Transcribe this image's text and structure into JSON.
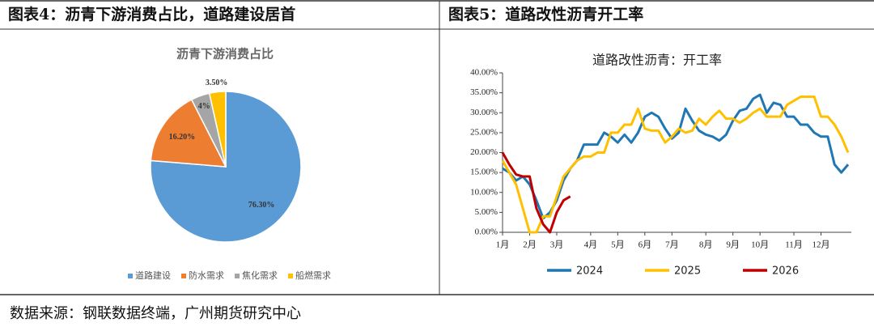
{
  "panels": [
    {
      "heading": "图表4：沥青下游消费占比，道路建设居首"
    },
    {
      "heading": "图表5：道路改性沥青开工率"
    }
  ],
  "source": "数据来源：钢联数据终端，广州期货研究中心",
  "chart_data": [
    {
      "type": "pie",
      "title": "沥青下游消费占比",
      "categories": [
        "道路建设",
        "防水需求",
        "焦化需求",
        "船燃需求"
      ],
      "values": [
        76.3,
        16.2,
        4,
        3.5
      ],
      "value_labels": [
        "76.30%",
        "16.20%",
        "4%",
        "3.50%"
      ],
      "colors": [
        "#5b9bd5",
        "#ed7d31",
        "#a5a5a5",
        "#ffc000"
      ],
      "legend": "bottom"
    },
    {
      "type": "line",
      "title": "道路改性沥青：开工率",
      "categories": [
        "1月",
        null,
        null,
        null,
        "2月",
        null,
        null,
        null,
        "3月",
        null,
        null,
        null,
        null,
        "4月",
        null,
        null,
        null,
        "5月",
        null,
        null,
        null,
        "6月",
        null,
        null,
        null,
        "7月",
        null,
        null,
        null,
        null,
        "8月",
        null,
        null,
        null,
        "9月",
        null,
        null,
        null,
        "10月",
        null,
        null,
        null,
        null,
        "11月",
        null,
        null,
        null,
        "12月",
        null,
        null,
        null,
        null
      ],
      "series": [
        {
          "name": "2024",
          "color": "#1f77b4",
          "values": [
            16,
            15,
            13,
            14,
            12,
            8,
            3.5,
            5,
            8,
            13,
            16,
            18,
            22,
            22,
            22,
            25,
            24,
            22.5,
            24.5,
            22.5,
            25,
            29,
            30,
            29,
            26,
            23.5,
            25,
            31,
            28,
            25.5,
            24.5,
            24,
            23,
            24.5,
            28,
            30.5,
            31,
            33.5,
            34.5,
            30,
            32.5,
            32,
            29,
            29,
            27,
            27,
            25,
            24,
            24,
            17,
            15,
            17
          ]
        },
        {
          "name": "2025",
          "color": "#ffc000",
          "values": [
            18,
            15,
            12,
            6,
            0,
            0,
            4,
            4,
            9,
            14,
            16,
            18,
            19,
            19,
            20,
            20,
            25,
            25,
            27,
            27,
            31,
            26,
            25.5,
            25.5,
            22.5,
            24,
            26,
            25,
            25.5,
            28.5,
            27,
            29,
            30.5,
            28.5,
            28.5,
            27.5,
            28.5,
            30,
            31,
            29,
            29,
            29,
            32,
            33,
            34,
            34,
            34,
            29,
            29,
            27,
            24,
            20
          ]
        },
        {
          "name": "2026",
          "color": "#c00000",
          "values": [
            20,
            17,
            14.5,
            14,
            14,
            6,
            2,
            0,
            5,
            8,
            9,
            null,
            null,
            null,
            null,
            null,
            null,
            null,
            null,
            null,
            null,
            null,
            null,
            null,
            null,
            null,
            null,
            null,
            null,
            null,
            null,
            null,
            null,
            null,
            null,
            null,
            null,
            null,
            null,
            null,
            null,
            null,
            null,
            null,
            null,
            null,
            null,
            null,
            null,
            null,
            null,
            null
          ]
        }
      ],
      "ylim": [
        0,
        40
      ],
      "yticks": [
        {
          "value": 0,
          "label": "0.00%"
        },
        {
          "value": 5,
          "label": "5.00%"
        },
        {
          "value": 10,
          "label": "10.00%"
        },
        {
          "value": 15,
          "label": "15.00%"
        },
        {
          "value": 20,
          "label": "20.00%"
        },
        {
          "value": 25,
          "label": "25.00%"
        },
        {
          "value": 30,
          "label": "30.00%"
        },
        {
          "value": 35,
          "label": "35.00%"
        },
        {
          "value": 40,
          "label": "40.00%"
        }
      ],
      "legend": "bottom"
    }
  ]
}
